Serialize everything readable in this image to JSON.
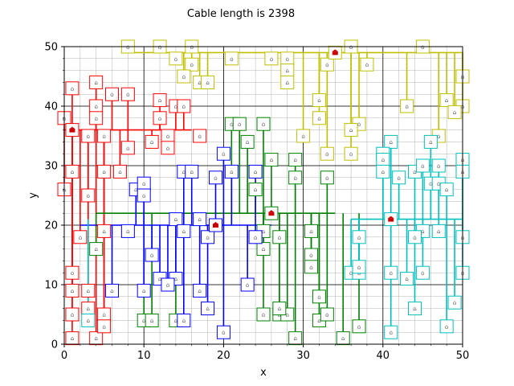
{
  "chart_data": {
    "type": "scatter",
    "title": "Cable length is 2398",
    "xlabel": "x",
    "ylabel": "y",
    "xlim": [
      0,
      50
    ],
    "ylim": [
      0,
      50
    ],
    "xticks": [
      "0",
      "10",
      "20",
      "30",
      "40",
      "50"
    ],
    "yticks": [
      "0",
      "10",
      "20",
      "30",
      "40",
      "50"
    ],
    "grid": true,
    "minor_grid": true,
    "marker_glyph": "⌂",
    "colors": {
      "red": "#ff0000",
      "yellow": "#bfbf00",
      "green": "#008000",
      "blue": "#0000ff",
      "cyan": "#00bfbf",
      "station_roof": "#cc0000"
    },
    "series": [
      {
        "color_key": "red",
        "station": [
          1,
          36
        ],
        "trunk_y": 36,
        "trunk_x": [
          0,
          16
        ],
        "houses": [
          [
            1,
            43
          ],
          [
            4,
            44
          ],
          [
            6,
            42
          ],
          [
            8,
            42
          ],
          [
            4,
            40
          ],
          [
            4,
            38
          ],
          [
            0,
            38
          ],
          [
            12,
            41
          ],
          [
            12,
            38
          ],
          [
            14,
            40
          ],
          [
            15,
            40
          ],
          [
            11,
            34
          ],
          [
            13,
            35
          ],
          [
            13,
            33
          ],
          [
            17,
            35
          ],
          [
            8,
            33
          ],
          [
            3,
            35
          ],
          [
            5,
            35
          ],
          [
            1,
            29
          ],
          [
            5,
            29
          ],
          [
            7,
            29
          ],
          [
            3,
            25
          ],
          [
            0,
            26
          ],
          [
            2,
            18
          ],
          [
            5,
            19
          ],
          [
            1,
            12
          ],
          [
            1,
            9
          ],
          [
            3,
            9
          ],
          [
            3,
            6
          ],
          [
            5,
            5
          ],
          [
            1,
            5
          ],
          [
            1,
            1
          ],
          [
            4,
            1
          ],
          [
            5,
            3
          ]
        ]
      },
      {
        "color_key": "yellow",
        "station": [
          34,
          49
        ],
        "trunk_y": 49,
        "trunk_x": [
          8,
          50
        ],
        "houses": [
          [
            8,
            50
          ],
          [
            12,
            50
          ],
          [
            16,
            50
          ],
          [
            14,
            48
          ],
          [
            16,
            47
          ],
          [
            15,
            45
          ],
          [
            17,
            44
          ],
          [
            18,
            44
          ],
          [
            21,
            48
          ],
          [
            26,
            48
          ],
          [
            28,
            48
          ],
          [
            28,
            46
          ],
          [
            28,
            44
          ],
          [
            33,
            47
          ],
          [
            36,
            50
          ],
          [
            38,
            47
          ],
          [
            45,
            50
          ],
          [
            50,
            45
          ],
          [
            50,
            40
          ],
          [
            48,
            41
          ],
          [
            49,
            39
          ],
          [
            43,
            40
          ],
          [
            37,
            37
          ],
          [
            36,
            36
          ],
          [
            32,
            41
          ],
          [
            32,
            38
          ],
          [
            30,
            35
          ],
          [
            33,
            32
          ],
          [
            36,
            32
          ],
          [
            47,
            35
          ]
        ]
      },
      {
        "color_key": "green",
        "station": [
          26,
          22
        ],
        "trunk_y": 22,
        "trunk_x": [
          4,
          34
        ],
        "houses": [
          [
            21,
            37
          ],
          [
            22,
            37
          ],
          [
            25,
            37
          ],
          [
            23,
            34
          ],
          [
            26,
            31
          ],
          [
            29,
            31
          ],
          [
            29,
            28
          ],
          [
            33,
            28
          ],
          [
            24,
            26
          ],
          [
            25,
            19
          ],
          [
            27,
            18
          ],
          [
            25,
            16
          ],
          [
            31,
            19
          ],
          [
            31,
            15
          ],
          [
            31,
            13
          ],
          [
            32,
            8
          ],
          [
            32,
            4
          ],
          [
            33,
            5
          ],
          [
            35,
            1
          ],
          [
            29,
            1
          ],
          [
            27,
            5
          ],
          [
            28,
            5
          ],
          [
            27,
            6
          ],
          [
            25,
            5
          ],
          [
            37,
            3
          ],
          [
            4,
            16
          ],
          [
            10,
            4
          ],
          [
            11,
            4
          ],
          [
            14,
            4
          ]
        ]
      },
      {
        "color_key": "blue",
        "station": [
          19,
          20
        ],
        "trunk_y": 20,
        "trunk_x": [
          2,
          26
        ],
        "houses": [
          [
            20,
            32
          ],
          [
            21,
            29
          ],
          [
            19,
            28
          ],
          [
            24,
            29
          ],
          [
            15,
            29
          ],
          [
            16,
            29
          ],
          [
            9,
            26
          ],
          [
            10,
            27
          ],
          [
            10,
            25
          ],
          [
            14,
            21
          ],
          [
            17,
            21
          ],
          [
            15,
            19
          ],
          [
            18,
            18
          ],
          [
            8,
            19
          ],
          [
            11,
            15
          ],
          [
            12,
            11
          ],
          [
            14,
            11
          ],
          [
            13,
            10
          ],
          [
            10,
            9
          ],
          [
            6,
            9
          ],
          [
            17,
            9
          ],
          [
            18,
            6
          ],
          [
            15,
            4
          ],
          [
            20,
            2
          ],
          [
            23,
            10
          ],
          [
            24,
            18
          ]
        ]
      },
      {
        "color_key": "cyan",
        "station": [
          41,
          21
        ],
        "trunk_y": 21,
        "trunk_x": [
          36,
          50
        ],
        "houses": [
          [
            41,
            34
          ],
          [
            40,
            32
          ],
          [
            40,
            31
          ],
          [
            40,
            29
          ],
          [
            42,
            28
          ],
          [
            44,
            29
          ],
          [
            45,
            30
          ],
          [
            46,
            34
          ],
          [
            47,
            30
          ],
          [
            46,
            27
          ],
          [
            47,
            27
          ],
          [
            48,
            26
          ],
          [
            50,
            31
          ],
          [
            50,
            29
          ],
          [
            50,
            18
          ],
          [
            50,
            12
          ],
          [
            47,
            19
          ],
          [
            45,
            19
          ],
          [
            44,
            18
          ],
          [
            37,
            18
          ],
          [
            36,
            12
          ],
          [
            37,
            12
          ],
          [
            37,
            13
          ],
          [
            41,
            12
          ],
          [
            43,
            11
          ],
          [
            45,
            12
          ],
          [
            44,
            6
          ],
          [
            49,
            7
          ],
          [
            48,
            3
          ],
          [
            41,
            2
          ],
          [
            3,
            4
          ]
        ]
      }
    ]
  }
}
